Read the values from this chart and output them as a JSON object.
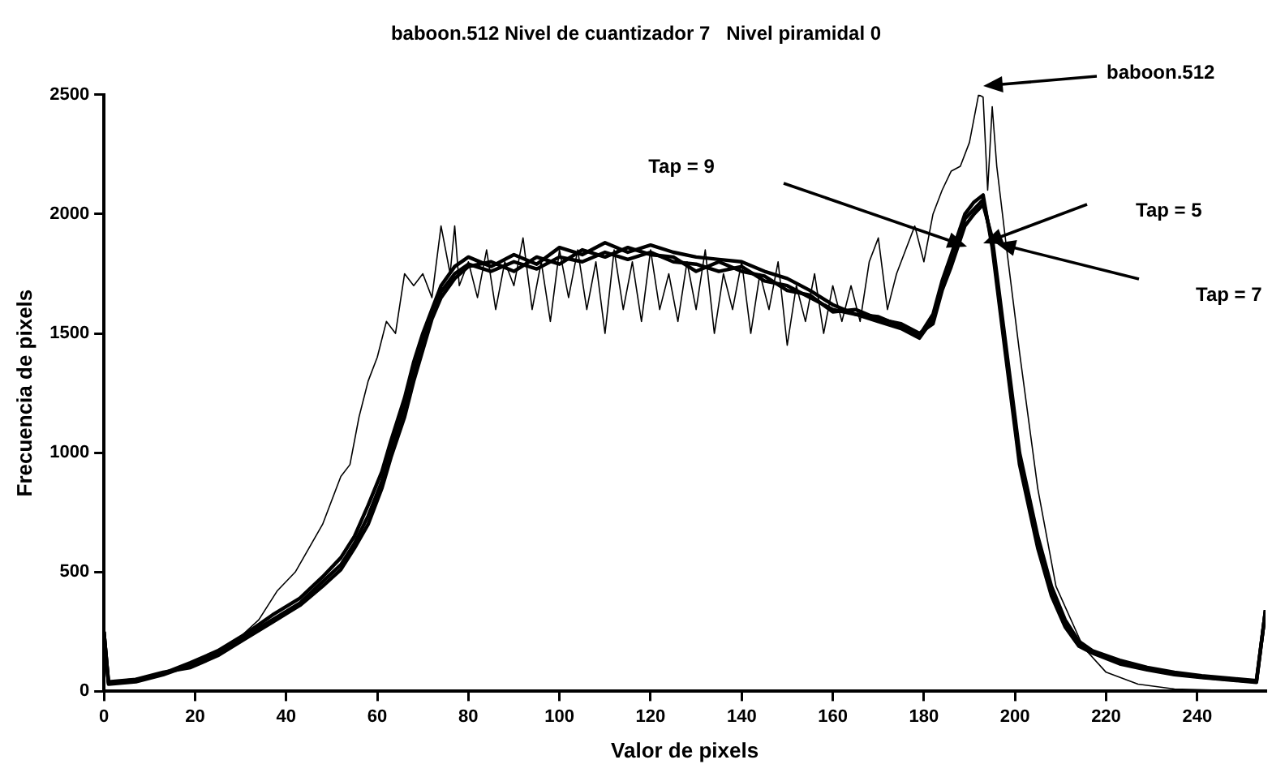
{
  "chart_data": {
    "type": "line",
    "title": "baboon.512 Nivel de cuantizador 7   Nivel piramidal 0",
    "xlabel": "Valor de pixels",
    "ylabel": "Frecuencia de pixels",
    "xlim": [
      0,
      255
    ],
    "xticks": [
      0,
      20,
      40,
      60,
      80,
      100,
      120,
      140,
      160,
      180,
      200,
      220,
      240
    ],
    "ylim": [
      0,
      2500
    ],
    "yticks": [
      0,
      500,
      1000,
      1500,
      2000,
      2500
    ],
    "grid": false,
    "legend": false,
    "marker": "none",
    "line_style": "solid",
    "series": [
      {
        "color": "#000000",
        "x": [
          0,
          1,
          5,
          10,
          15,
          20,
          25,
          30,
          34,
          38,
          42,
          45,
          48,
          50,
          52,
          54,
          56,
          58,
          60,
          62,
          64,
          66,
          68,
          70,
          72,
          74,
          76,
          77,
          78,
          80,
          82,
          84,
          86,
          88,
          90,
          92,
          94,
          96,
          98,
          100,
          102,
          104,
          106,
          108,
          110,
          112,
          114,
          116,
          118,
          120,
          122,
          124,
          126,
          128,
          130,
          132,
          134,
          136,
          138,
          140,
          142,
          144,
          146,
          148,
          150,
          152,
          154,
          156,
          158,
          160,
          162,
          164,
          166,
          168,
          170,
          172,
          174,
          176,
          178,
          180,
          182,
          184,
          186,
          188,
          190,
          192,
          193,
          194,
          195,
          196,
          198,
          201,
          205,
          209,
          215,
          220,
          227,
          235,
          245,
          254,
          255
        ],
        "values": [
          300,
          40,
          50,
          60,
          90,
          110,
          160,
          230,
          300,
          420,
          500,
          600,
          700,
          800,
          900,
          950,
          1150,
          1300,
          1400,
          1550,
          1500,
          1750,
          1700,
          1750,
          1650,
          1950,
          1750,
          1950,
          1700,
          1800,
          1650,
          1850,
          1600,
          1800,
          1700,
          1900,
          1600,
          1800,
          1550,
          1850,
          1650,
          1850,
          1600,
          1800,
          1500,
          1850,
          1600,
          1800,
          1550,
          1850,
          1600,
          1750,
          1550,
          1800,
          1600,
          1850,
          1500,
          1750,
          1600,
          1800,
          1500,
          1750,
          1600,
          1800,
          1450,
          1700,
          1550,
          1750,
          1500,
          1700,
          1550,
          1700,
          1550,
          1800,
          1900,
          1600,
          1750,
          1850,
          1950,
          1800,
          2000,
          2100,
          2180,
          2200,
          2300,
          2500,
          2490,
          2100,
          2450,
          2200,
          1880,
          1420,
          850,
          440,
          185,
          80,
          30,
          10,
          5,
          5,
          0
        ]
      },
      {
        "color": "#000000",
        "x": [
          0,
          1,
          7,
          13,
          19,
          25,
          31,
          37,
          43,
          48,
          52,
          55,
          58,
          61,
          63,
          66,
          68,
          70,
          72,
          74,
          77,
          80,
          85,
          90,
          95,
          100,
          105,
          110,
          115,
          120,
          125,
          130,
          135,
          140,
          145,
          150,
          155,
          160,
          165,
          170,
          175,
          179,
          182,
          184,
          186,
          189,
          191,
          193,
          195,
          198,
          201,
          205,
          208,
          211,
          214,
          217,
          223,
          229,
          235,
          241,
          247,
          253,
          255
        ],
        "values": [
          250,
          30,
          40,
          70,
          110,
          160,
          230,
          300,
          370,
          460,
          530,
          620,
          735,
          880,
          1010,
          1195,
          1330,
          1470,
          1580,
          1675,
          1750,
          1790,
          1760,
          1800,
          1770,
          1820,
          1800,
          1840,
          1810,
          1840,
          1800,
          1790,
          1760,
          1780,
          1720,
          1700,
          1650,
          1600,
          1580,
          1550,
          1520,
          1480,
          1560,
          1700,
          1800,
          1980,
          2020,
          2060,
          1880,
          1420,
          970,
          625,
          420,
          280,
          200,
          165,
          120,
          95,
          75,
          60,
          50,
          40,
          340
        ]
      },
      {
        "color": "#000000",
        "x": [
          0,
          1,
          7,
          13,
          19,
          25,
          31,
          37,
          43,
          48,
          52,
          55,
          58,
          61,
          63,
          66,
          68,
          70,
          72,
          74,
          77,
          80,
          85,
          90,
          95,
          100,
          105,
          110,
          115,
          120,
          125,
          130,
          135,
          140,
          145,
          150,
          155,
          160,
          165,
          170,
          175,
          179,
          182,
          184,
          186,
          189,
          191,
          193,
          195,
          198,
          201,
          205,
          208,
          211,
          214,
          217,
          223,
          229,
          235,
          241,
          247,
          253,
          255
        ],
        "values": [
          250,
          40,
          50,
          80,
          100,
          150,
          220,
          290,
          360,
          440,
          510,
          600,
          700,
          850,
          980,
          1150,
          1300,
          1430,
          1560,
          1650,
          1730,
          1780,
          1800,
          1760,
          1820,
          1790,
          1850,
          1820,
          1860,
          1830,
          1820,
          1760,
          1800,
          1760,
          1740,
          1680,
          1660,
          1590,
          1600,
          1560,
          1540,
          1500,
          1540,
          1680,
          1780,
          1950,
          2000,
          2040,
          1900,
          1450,
          1000,
          650,
          440,
          300,
          210,
          170,
          130,
          100,
          80,
          65,
          55,
          45,
          340
        ]
      },
      {
        "color": "#000000",
        "x": [
          0,
          1,
          7,
          13,
          19,
          25,
          31,
          37,
          43,
          48,
          52,
          55,
          58,
          61,
          63,
          66,
          68,
          70,
          72,
          74,
          77,
          80,
          85,
          90,
          95,
          100,
          105,
          110,
          115,
          120,
          125,
          130,
          135,
          140,
          145,
          150,
          155,
          160,
          165,
          170,
          175,
          179,
          182,
          184,
          186,
          189,
          191,
          193,
          195,
          198,
          201,
          205,
          208,
          211,
          214,
          217,
          223,
          229,
          235,
          241,
          247,
          253,
          255
        ],
        "values": [
          250,
          35,
          45,
          75,
          120,
          170,
          240,
          320,
          390,
          480,
          560,
          650,
          780,
          920,
          1050,
          1230,
          1380,
          1500,
          1600,
          1700,
          1780,
          1820,
          1780,
          1830,
          1790,
          1860,
          1830,
          1880,
          1840,
          1870,
          1840,
          1820,
          1810,
          1800,
          1760,
          1730,
          1680,
          1620,
          1580,
          1570,
          1530,
          1490,
          1580,
          1720,
          1830,
          2000,
          2050,
          2080,
          1860,
          1400,
          950,
          600,
          400,
          270,
          190,
          160,
          115,
          90,
          70,
          58,
          48,
          38,
          340
        ]
      }
    ],
    "annotations": [
      "baboon.512",
      "Tap = 9",
      "Tap = 5",
      "Tap = 7"
    ]
  }
}
